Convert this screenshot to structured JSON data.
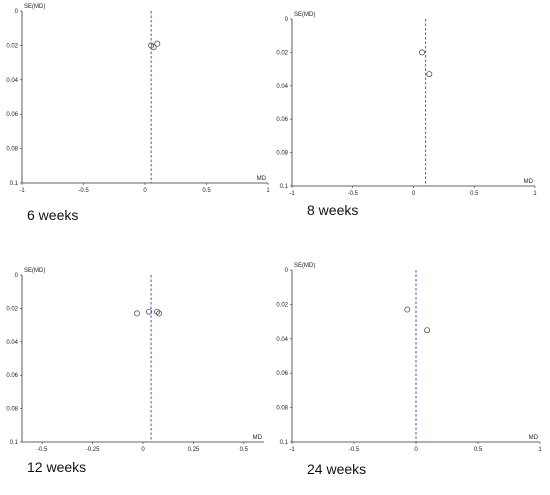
{
  "chart_data": [
    {
      "type": "scatter",
      "caption": "6 weeks",
      "xlabel": "MD",
      "ylabel": "SE(MD)",
      "xlim": [
        -1,
        1
      ],
      "ylim": [
        0,
        0.1
      ],
      "y_reversed": true,
      "xticks": [
        -1,
        -0.5,
        0,
        0.5,
        1
      ],
      "xtick_labels": [
        "-1",
        "-0.5",
        "0",
        "0.5",
        "1"
      ],
      "yticks": [
        0,
        0.02,
        0.04,
        0.06,
        0.08,
        0.1
      ],
      "ytick_labels": [
        "0",
        "0.02",
        "0.04",
        "0.06",
        "0.08",
        "0.1"
      ],
      "pooled_md": 0.05,
      "points": [
        {
          "x": 0.05,
          "y": 0.02
        },
        {
          "x": 0.1,
          "y": 0.019
        },
        {
          "x": 0.07,
          "y": 0.021
        }
      ],
      "line_color": "#3a3ad0",
      "marker_color": "#555555"
    },
    {
      "type": "scatter",
      "caption": "8 weeks",
      "xlabel": "MD",
      "ylabel": "SE(MD)",
      "xlim": [
        -1,
        1
      ],
      "ylim": [
        0,
        0.1
      ],
      "y_reversed": true,
      "xticks": [
        -1,
        -0.5,
        0,
        0.5,
        1
      ],
      "xtick_labels": [
        "-1",
        "-0.5",
        "0",
        "0.5",
        "1"
      ],
      "yticks": [
        0,
        0.02,
        0.04,
        0.06,
        0.08,
        0.1
      ],
      "ytick_labels": [
        "0",
        "0.02",
        "0.04",
        "0.06",
        "0.08",
        "0.1"
      ],
      "pooled_md": 0.1,
      "points": [
        {
          "x": 0.07,
          "y": 0.02
        },
        {
          "x": 0.13,
          "y": 0.033
        }
      ],
      "line_color": "#3a3ad0",
      "marker_color": "#555555"
    },
    {
      "type": "scatter",
      "caption": "12 weeks",
      "xlabel": "MD",
      "ylabel": "SE(MD)",
      "xlim": [
        -0.6,
        0.6
      ],
      "ylim": [
        0,
        0.1
      ],
      "y_reversed": true,
      "xticks": [
        -0.5,
        -0.25,
        0,
        0.25,
        0.5
      ],
      "xtick_labels": [
        "-0.5",
        "-0.25",
        "0",
        "0.25",
        "0.5"
      ],
      "yticks": [
        0,
        0.02,
        0.04,
        0.06,
        0.08,
        0.1
      ],
      "ytick_labels": [
        "0",
        "0.02",
        "0.04",
        "0.06",
        "0.08",
        "0.1"
      ],
      "pooled_md": 0.04,
      "points": [
        {
          "x": -0.03,
          "y": 0.023
        },
        {
          "x": 0.03,
          "y": 0.022
        },
        {
          "x": 0.07,
          "y": 0.022
        },
        {
          "x": 0.08,
          "y": 0.023
        }
      ],
      "line_color": "#3a3ad0",
      "marker_color": "#555555"
    },
    {
      "type": "scatter",
      "caption": "24 weeks",
      "xlabel": "MD",
      "ylabel": "SE(MD)",
      "xlim": [
        -1,
        1
      ],
      "ylim": [
        0,
        0.1
      ],
      "y_reversed": true,
      "xticks": [
        -1,
        -0.5,
        0,
        0.5,
        1
      ],
      "xtick_labels": [
        "-1",
        "-0.5",
        "0",
        "0.5",
        "1"
      ],
      "yticks": [
        0,
        0.02,
        0.04,
        0.06,
        0.08,
        0.1
      ],
      "ytick_labels": [
        "0",
        "0.02",
        "0.04",
        "0.06",
        "0.08",
        "0.1"
      ],
      "pooled_md": 0,
      "points": [
        {
          "x": -0.07,
          "y": 0.023
        },
        {
          "x": 0.09,
          "y": 0.035
        }
      ],
      "line_color": "#3a3ad0",
      "marker_color": "#555555"
    }
  ]
}
